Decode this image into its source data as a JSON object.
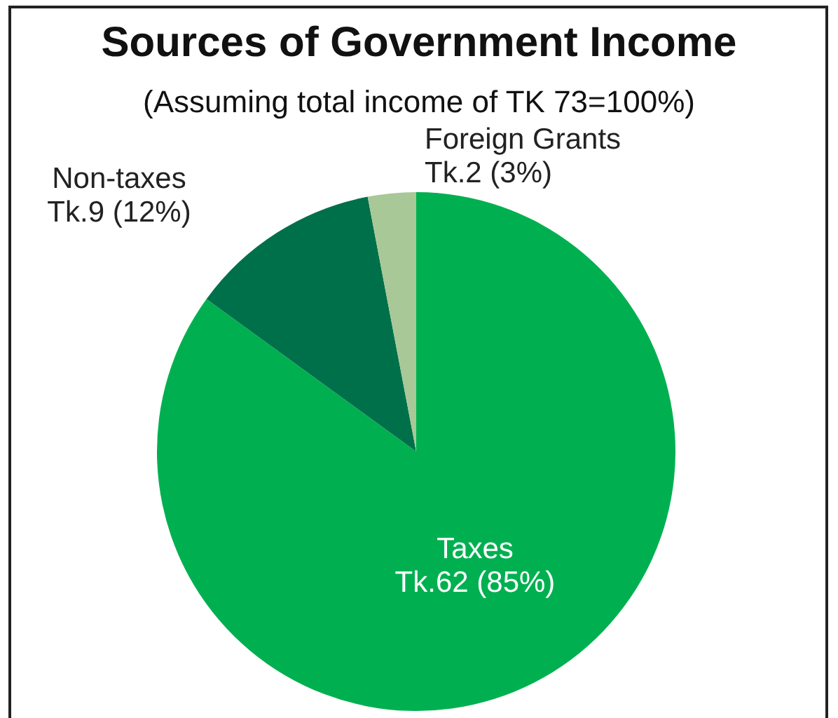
{
  "chart_data": {
    "type": "pie",
    "title": "Sources of Government Income",
    "subtitle": "(Assuming total income of TK 73=100%)",
    "categories": [
      "Taxes",
      "Non-taxes",
      "Foreign Grants"
    ],
    "values": [
      85,
      12,
      3
    ],
    "value_labels": [
      "Tk.62 (85%)",
      "Tk.9 (12%)",
      "Tk.2 (3%)"
    ],
    "colors": [
      "#00b050",
      "#00704a",
      "#a8c898"
    ],
    "legend": false
  }
}
